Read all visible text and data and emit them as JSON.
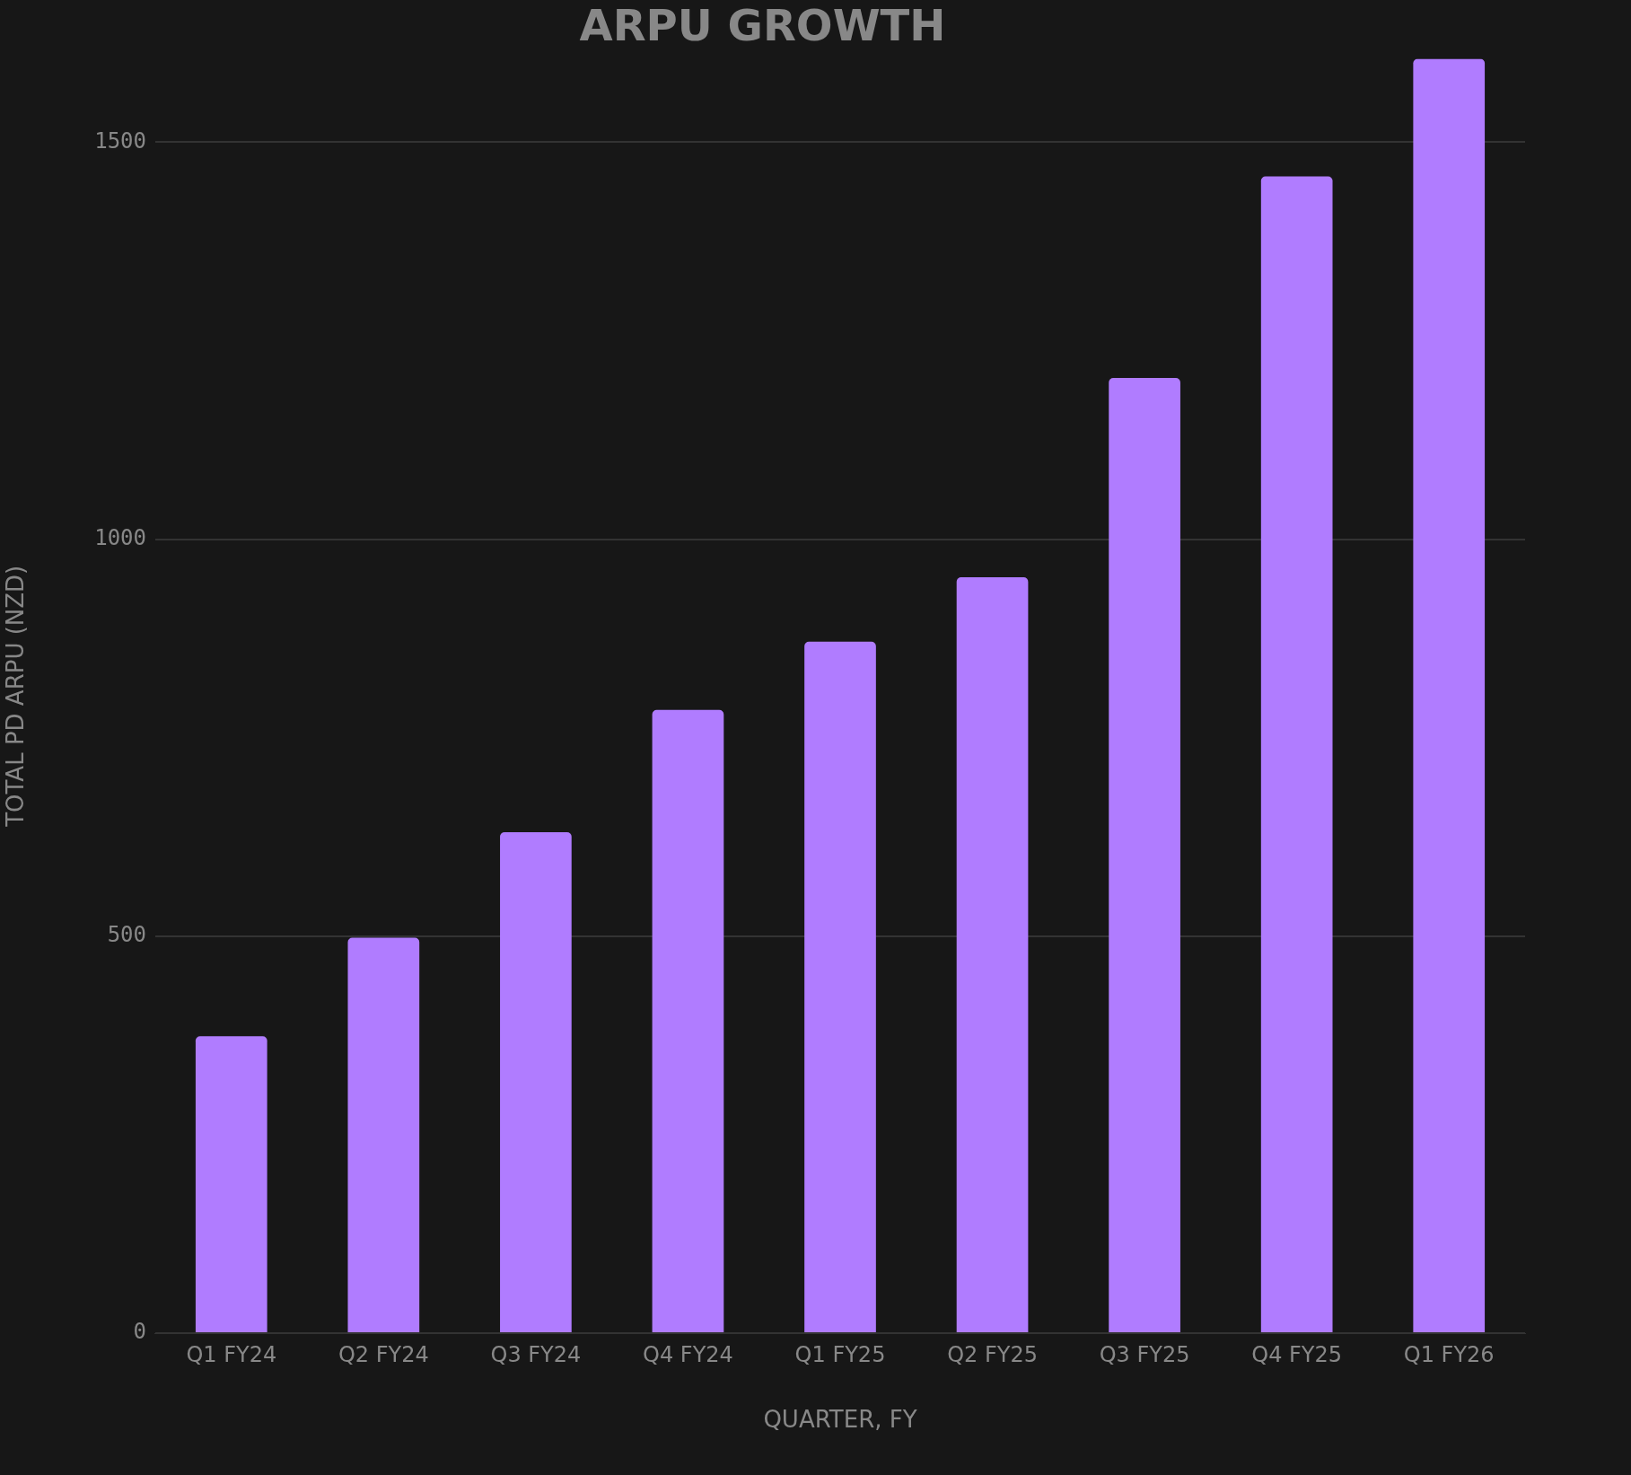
{
  "chart_data": {
    "type": "bar",
    "title": "ARPU GROWTH",
    "xlabel": "QUARTER, FY",
    "ylabel": "TOTAL PD ARPU (NZD)",
    "categories": [
      "Q1 FY24",
      "Q2 FY24",
      "Q3 FY24",
      "Q4 FY24",
      "Q1 FY25",
      "Q2 FY25",
      "Q3 FY25",
      "Q4 FY25",
      "Q1 FY26"
    ],
    "values": [
      374,
      498,
      631,
      785,
      871,
      952,
      1203,
      1457,
      1605
    ],
    "color": "#b07cff",
    "ylim": [
      0,
      1605
    ],
    "yticks": [
      0,
      500,
      1000,
      1500
    ],
    "grid": "y",
    "legend": false
  }
}
